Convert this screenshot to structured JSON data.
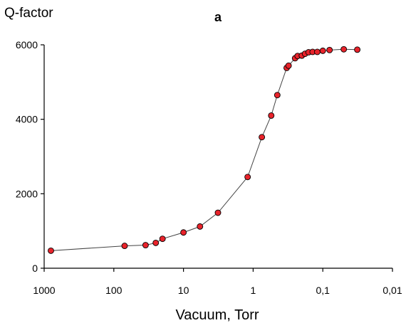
{
  "chart_data": {
    "type": "scatter",
    "panel_label": "a",
    "ylabel": "Q-factor",
    "xlabel": "Vacuum, Torr",
    "x_scale": "log",
    "x_reversed": true,
    "xlim": [
      1000,
      0.01
    ],
    "ylim": [
      0,
      6000
    ],
    "x_ticks": [
      1000,
      100,
      10,
      1,
      0.1,
      0.01
    ],
    "x_tick_labels": [
      "1000",
      "100",
      "10",
      "1",
      "0,1",
      "0,01"
    ],
    "y_ticks": [
      0,
      2000,
      4000,
      6000
    ],
    "y_tick_labels": [
      "0",
      "2000",
      "4000",
      "6000"
    ],
    "grid": false,
    "legend": "none",
    "marker_color": "#e8232b",
    "line_color": "#444444",
    "series": [
      {
        "points": [
          {
            "x": 800,
            "y": 470
          },
          {
            "x": 70,
            "y": 600
          },
          {
            "x": 35,
            "y": 620
          },
          {
            "x": 25,
            "y": 680
          },
          {
            "x": 20,
            "y": 790
          },
          {
            "x": 10,
            "y": 960
          },
          {
            "x": 5.8,
            "y": 1120
          },
          {
            "x": 3.2,
            "y": 1490
          },
          {
            "x": 1.2,
            "y": 2450
          },
          {
            "x": 0.75,
            "y": 3520
          },
          {
            "x": 0.55,
            "y": 4100
          },
          {
            "x": 0.45,
            "y": 4650
          },
          {
            "x": 0.33,
            "y": 5380
          },
          {
            "x": 0.31,
            "y": 5440
          },
          {
            "x": 0.25,
            "y": 5640
          },
          {
            "x": 0.23,
            "y": 5700
          },
          {
            "x": 0.2,
            "y": 5710
          },
          {
            "x": 0.18,
            "y": 5760
          },
          {
            "x": 0.16,
            "y": 5800
          },
          {
            "x": 0.14,
            "y": 5810
          },
          {
            "x": 0.12,
            "y": 5810
          },
          {
            "x": 0.1,
            "y": 5840
          },
          {
            "x": 0.08,
            "y": 5860
          },
          {
            "x": 0.05,
            "y": 5880
          },
          {
            "x": 0.032,
            "y": 5870
          }
        ]
      }
    ]
  }
}
